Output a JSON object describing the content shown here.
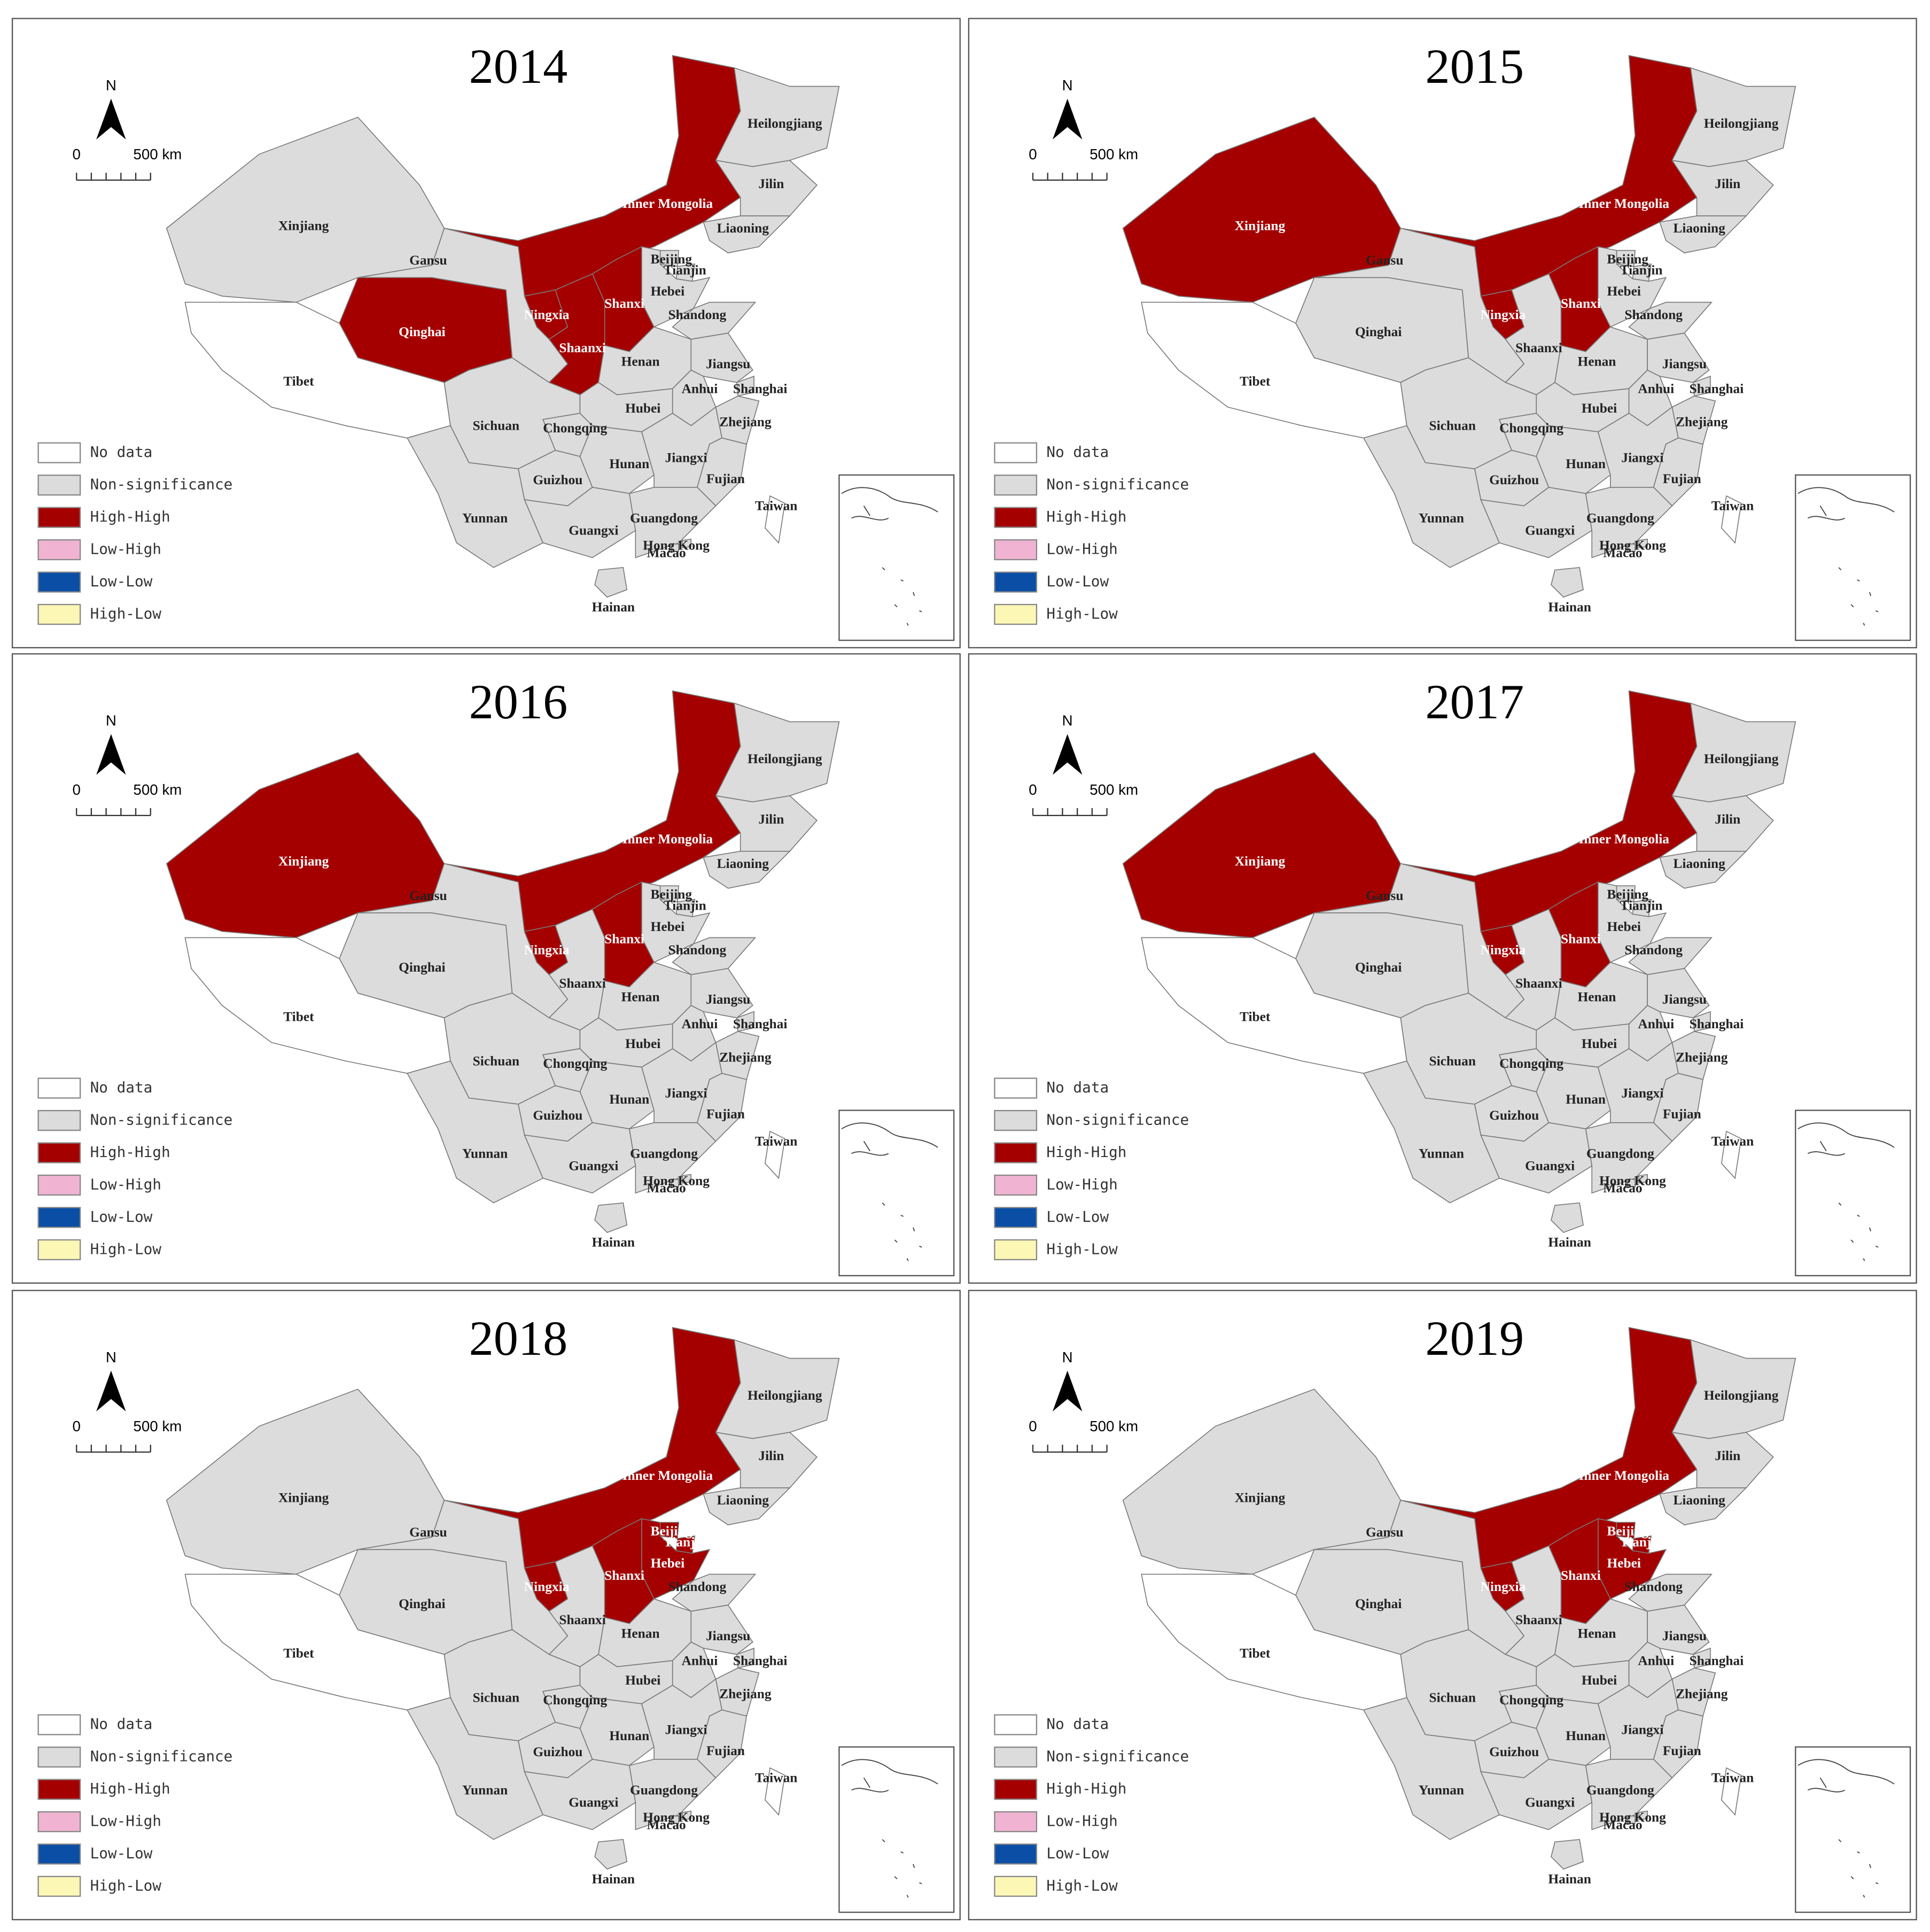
{
  "north": "N",
  "scale_start": 0,
  "scale_label": "500 km",
  "legend": [
    {
      "label": "No data",
      "color": "#ffffff"
    },
    {
      "label": "Non-significance",
      "color": "#dcdcdc"
    },
    {
      "label": "High-High",
      "color": "#a50000"
    },
    {
      "label": "Low-High",
      "color": "#f0b4d2"
    },
    {
      "label": "Low-Low",
      "color": "#0a4ea6"
    },
    {
      "label": "High-Low",
      "color": "#fdf7b6"
    }
  ],
  "provinces": [
    "Heilongjiang",
    "Jilin",
    "Liaoning",
    "Inner Mongolia",
    "Beijing",
    "Tianjin",
    "Hebei",
    "Shanxi",
    "Shandong",
    "Xinjiang",
    "Gansu",
    "Ningxia",
    "Qinghai",
    "Shaanxi",
    "Henan",
    "Jiangsu",
    "Anhui",
    "Shanghai",
    "Tibet",
    "Sichuan",
    "Chongqing",
    "Hubei",
    "Zhejiang",
    "Hunan",
    "Jiangxi",
    "Guizhou",
    "Fujian",
    "Yunnan",
    "Taiwan",
    "Guangxi",
    "Guangdong",
    "Hong Kong",
    "Macao",
    "Hainan"
  ],
  "panels": [
    {
      "title": "2014",
      "clusters": [
        "Non-significance",
        "Non-significance",
        "Non-significance",
        "High-High",
        "Non-significance",
        "Non-significance",
        "Non-significance",
        "High-High",
        "Non-significance",
        "Non-significance",
        "Non-significance",
        "High-High",
        "High-High",
        "High-High",
        "Non-significance",
        "Non-significance",
        "Non-significance",
        "Non-significance",
        "No data",
        "Non-significance",
        "Non-significance",
        "Non-significance",
        "Non-significance",
        "Non-significance",
        "Non-significance",
        "Non-significance",
        "Non-significance",
        "Non-significance",
        "No data",
        "Non-significance",
        "Non-significance",
        "Non-significance",
        "Non-significance",
        "Non-significance"
      ]
    },
    {
      "title": "2015",
      "clusters": [
        "Non-significance",
        "Non-significance",
        "Non-significance",
        "High-High",
        "Non-significance",
        "Non-significance",
        "Non-significance",
        "High-High",
        "Non-significance",
        "High-High",
        "Non-significance",
        "High-High",
        "Non-significance",
        "Non-significance",
        "Non-significance",
        "Non-significance",
        "Non-significance",
        "Non-significance",
        "No data",
        "Non-significance",
        "Non-significance",
        "Non-significance",
        "Non-significance",
        "Non-significance",
        "Non-significance",
        "Non-significance",
        "Non-significance",
        "Non-significance",
        "No data",
        "Non-significance",
        "Non-significance",
        "Non-significance",
        "Non-significance",
        "Non-significance"
      ]
    },
    {
      "title": "2016",
      "clusters": [
        "Non-significance",
        "Non-significance",
        "Non-significance",
        "High-High",
        "Non-significance",
        "Non-significance",
        "Non-significance",
        "High-High",
        "Non-significance",
        "High-High",
        "Non-significance",
        "High-High",
        "Non-significance",
        "Non-significance",
        "Non-significance",
        "Non-significance",
        "Non-significance",
        "Non-significance",
        "No data",
        "Non-significance",
        "Non-significance",
        "Non-significance",
        "Non-significance",
        "Non-significance",
        "Non-significance",
        "Non-significance",
        "Non-significance",
        "Non-significance",
        "No data",
        "Non-significance",
        "Non-significance",
        "Non-significance",
        "Non-significance",
        "Non-significance"
      ]
    },
    {
      "title": "2017",
      "clusters": [
        "Non-significance",
        "Non-significance",
        "Non-significance",
        "High-High",
        "Non-significance",
        "Non-significance",
        "Non-significance",
        "High-High",
        "Non-significance",
        "High-High",
        "Non-significance",
        "High-High",
        "Non-significance",
        "Non-significance",
        "Non-significance",
        "Non-significance",
        "Non-significance",
        "Non-significance",
        "No data",
        "Non-significance",
        "Non-significance",
        "Non-significance",
        "Non-significance",
        "Non-significance",
        "Non-significance",
        "Non-significance",
        "Non-significance",
        "Non-significance",
        "No data",
        "Non-significance",
        "Non-significance",
        "Non-significance",
        "Non-significance",
        "Non-significance"
      ]
    },
    {
      "title": "2018",
      "clusters": [
        "Non-significance",
        "Non-significance",
        "Non-significance",
        "High-High",
        "High-High",
        "High-High",
        "High-High",
        "High-High",
        "Non-significance",
        "Non-significance",
        "Non-significance",
        "High-High",
        "Non-significance",
        "Non-significance",
        "Non-significance",
        "Non-significance",
        "Non-significance",
        "Non-significance",
        "No data",
        "Non-significance",
        "Non-significance",
        "Non-significance",
        "Non-significance",
        "Non-significance",
        "Non-significance",
        "Non-significance",
        "Non-significance",
        "Non-significance",
        "No data",
        "Non-significance",
        "Non-significance",
        "Non-significance",
        "Non-significance",
        "Non-significance"
      ]
    },
    {
      "title": "2019",
      "clusters": [
        "Non-significance",
        "Non-significance",
        "Non-significance",
        "High-High",
        "High-High",
        "High-High",
        "High-High",
        "High-High",
        "Non-significance",
        "Non-significance",
        "Non-significance",
        "High-High",
        "Non-significance",
        "Non-significance",
        "Non-significance",
        "Non-significance",
        "Non-significance",
        "Non-significance",
        "No data",
        "Non-significance",
        "Non-significance",
        "Non-significance",
        "Non-significance",
        "Non-significance",
        "Non-significance",
        "Non-significance",
        "Non-significance",
        "Non-significance",
        "No data",
        "Non-significance",
        "Non-significance",
        "Non-significance",
        "Non-significance",
        "Non-significance"
      ]
    }
  ]
}
